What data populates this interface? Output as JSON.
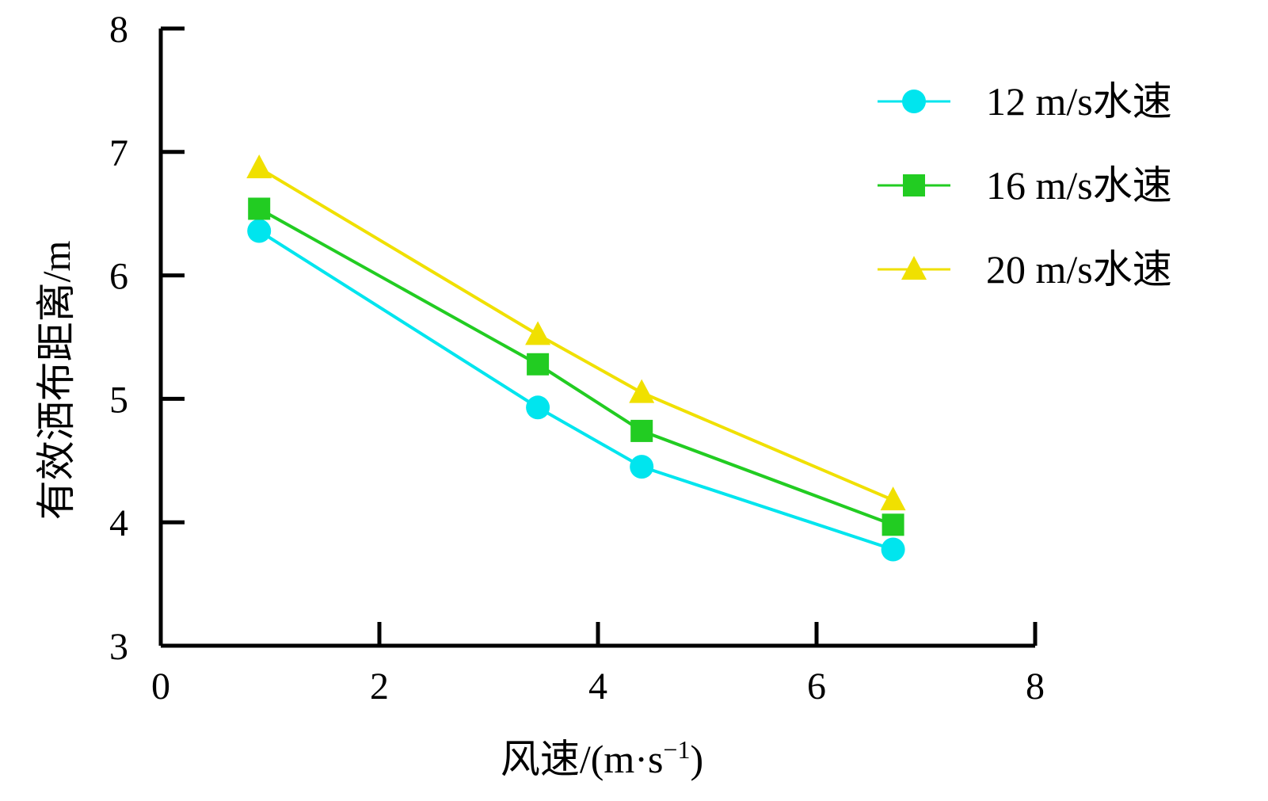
{
  "chart_data": {
    "type": "line",
    "title": "",
    "xlabel": "风速/(m·s",
    "xlabel_sup": "−1",
    "xlabel_close": ")",
    "ylabel": "有效洒布距离/m",
    "xlim": [
      0,
      8
    ],
    "ylim": [
      3,
      8
    ],
    "xticks": [
      "0",
      "2",
      "4",
      "6",
      "8"
    ],
    "yticks": [
      "3",
      "4",
      "5",
      "6",
      "7",
      "8"
    ],
    "grid": false,
    "legend_position": "top-right",
    "x": [
      0.9,
      3.45,
      4.4,
      6.7
    ],
    "series": [
      {
        "name": "12 m/s水速",
        "values": [
          6.36,
          4.93,
          4.45,
          3.78
        ],
        "color": "#00e5ee",
        "marker": "circle"
      },
      {
        "name": "16 m/s水速",
        "values": [
          6.54,
          5.28,
          4.74,
          3.98
        ],
        "color": "#22cc22",
        "marker": "square"
      },
      {
        "name": "20 m/s水速",
        "values": [
          6.87,
          5.52,
          5.05,
          4.18
        ],
        "color": "#f0e000",
        "marker": "triangle"
      }
    ]
  }
}
